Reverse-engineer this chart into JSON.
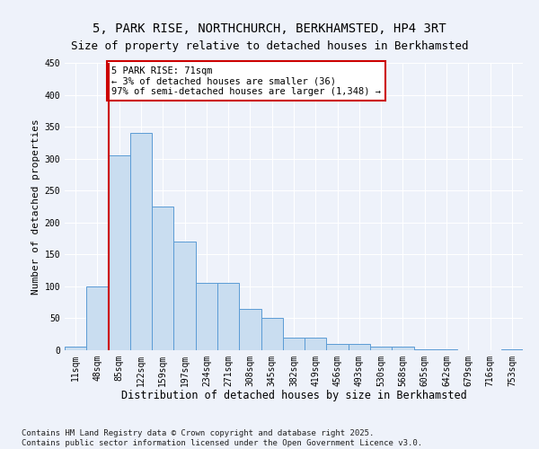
{
  "title": "5, PARK RISE, NORTHCHURCH, BERKHAMSTED, HP4 3RT",
  "subtitle": "Size of property relative to detached houses in Berkhamsted",
  "xlabel": "Distribution of detached houses by size in Berkhamsted",
  "ylabel": "Number of detached properties",
  "categories": [
    "11sqm",
    "48sqm",
    "85sqm",
    "122sqm",
    "159sqm",
    "197sqm",
    "234sqm",
    "271sqm",
    "308sqm",
    "345sqm",
    "382sqm",
    "419sqm",
    "456sqm",
    "493sqm",
    "530sqm",
    "568sqm",
    "605sqm",
    "642sqm",
    "679sqm",
    "716sqm",
    "753sqm"
  ],
  "values": [
    5,
    100,
    305,
    340,
    225,
    170,
    105,
    105,
    65,
    50,
    20,
    20,
    10,
    10,
    5,
    5,
    2,
    2,
    0,
    0,
    2
  ],
  "bar_color": "#c9ddf0",
  "bar_edge_color": "#5b9bd5",
  "annotation_text": "5 PARK RISE: 71sqm\n← 3% of detached houses are smaller (36)\n97% of semi-detached houses are larger (1,348) →",
  "annotation_box_color": "#ffffff",
  "annotation_box_edge_color": "#cc0000",
  "vline_color": "#cc0000",
  "vline_x": 1.5,
  "ylim": [
    0,
    450
  ],
  "yticks": [
    0,
    50,
    100,
    150,
    200,
    250,
    300,
    350,
    400,
    450
  ],
  "background_color": "#eef2fa",
  "grid_color": "#ffffff",
  "footer_text": "Contains HM Land Registry data © Crown copyright and database right 2025.\nContains public sector information licensed under the Open Government Licence v3.0.",
  "title_fontsize": 10,
  "xlabel_fontsize": 8.5,
  "ylabel_fontsize": 8,
  "tick_fontsize": 7,
  "annotation_fontsize": 7.5,
  "footer_fontsize": 6.5
}
